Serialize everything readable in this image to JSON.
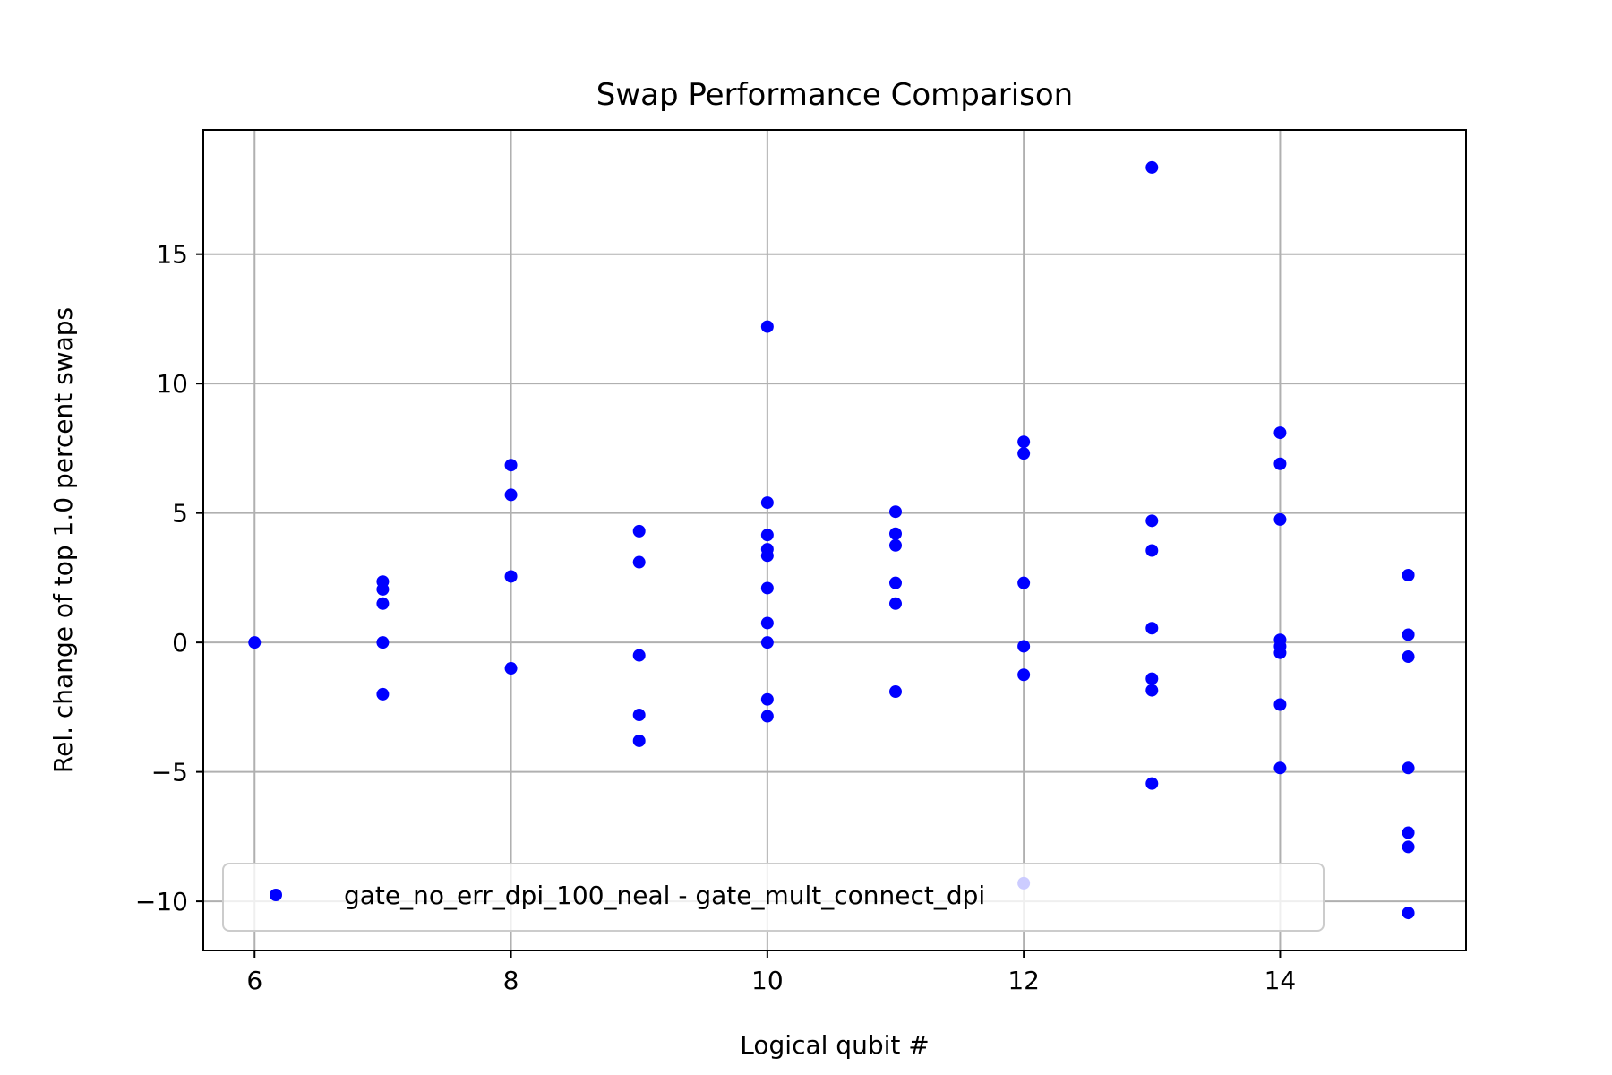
{
  "chart_data": {
    "type": "scatter",
    "title": "Swap Performance Comparison",
    "xlabel": "Logical qubit #",
    "ylabel": "Rel. change of top 1.0 percent swaps",
    "xlim": [
      5.6,
      15.45
    ],
    "ylim": [
      -11.9,
      19.8
    ],
    "xticks": [
      6,
      8,
      10,
      12,
      14
    ],
    "xtick_labels": [
      "6",
      "8",
      "10",
      "12",
      "14"
    ],
    "yticks": [
      -10,
      -5,
      0,
      5,
      10,
      15
    ],
    "ytick_labels": [
      "−10",
      "−5",
      "0",
      "5",
      "10",
      "15"
    ],
    "grid": true,
    "legend_location": "lower center",
    "series": [
      {
        "name": "gate_no_err_dpi_100_neal - gate_mult_connect_dpi",
        "color": "#0000ff",
        "marker": "circle",
        "points": [
          {
            "x": 6,
            "y": 0.0
          },
          {
            "x": 7,
            "y": 2.35
          },
          {
            "x": 7,
            "y": 2.05
          },
          {
            "x": 7,
            "y": 1.5
          },
          {
            "x": 7,
            "y": 0.0
          },
          {
            "x": 7,
            "y": -2.0
          },
          {
            "x": 8,
            "y": 6.85
          },
          {
            "x": 8,
            "y": 5.7
          },
          {
            "x": 8,
            "y": 2.55
          },
          {
            "x": 8,
            "y": -1.0
          },
          {
            "x": 9,
            "y": 4.3
          },
          {
            "x": 9,
            "y": 3.1
          },
          {
            "x": 9,
            "y": -0.5
          },
          {
            "x": 9,
            "y": -2.8
          },
          {
            "x": 9,
            "y": -3.8
          },
          {
            "x": 10,
            "y": 12.2
          },
          {
            "x": 10,
            "y": 5.4
          },
          {
            "x": 10,
            "y": 4.15
          },
          {
            "x": 10,
            "y": 3.6
          },
          {
            "x": 10,
            "y": 3.35
          },
          {
            "x": 10,
            "y": 2.1
          },
          {
            "x": 10,
            "y": 0.75
          },
          {
            "x": 10,
            "y": 0.0
          },
          {
            "x": 10,
            "y": -2.2
          },
          {
            "x": 10,
            "y": -2.85
          },
          {
            "x": 11,
            "y": 5.05
          },
          {
            "x": 11,
            "y": 4.2
          },
          {
            "x": 11,
            "y": 3.75
          },
          {
            "x": 11,
            "y": 2.3
          },
          {
            "x": 11,
            "y": 1.5
          },
          {
            "x": 11,
            "y": -1.9
          },
          {
            "x": 12,
            "y": 7.75
          },
          {
            "x": 12,
            "y": 7.3
          },
          {
            "x": 12,
            "y": 2.3
          },
          {
            "x": 12,
            "y": -0.15
          },
          {
            "x": 12,
            "y": -1.25
          },
          {
            "x": 12,
            "y": -9.3
          },
          {
            "x": 13,
            "y": 18.35
          },
          {
            "x": 13,
            "y": 4.7
          },
          {
            "x": 13,
            "y": 3.55
          },
          {
            "x": 13,
            "y": 0.55
          },
          {
            "x": 13,
            "y": -1.4
          },
          {
            "x": 13,
            "y": -1.85
          },
          {
            "x": 13,
            "y": -5.45
          },
          {
            "x": 14,
            "y": 8.1
          },
          {
            "x": 14,
            "y": 6.9
          },
          {
            "x": 14,
            "y": 4.75
          },
          {
            "x": 14,
            "y": 0.1
          },
          {
            "x": 14,
            "y": -0.15
          },
          {
            "x": 14,
            "y": -0.4
          },
          {
            "x": 14,
            "y": -2.4
          },
          {
            "x": 14,
            "y": -4.85
          },
          {
            "x": 15,
            "y": 2.6
          },
          {
            "x": 15,
            "y": 0.3
          },
          {
            "x": 15,
            "y": -0.55
          },
          {
            "x": 15,
            "y": -4.85
          },
          {
            "x": 15,
            "y": -7.35
          },
          {
            "x": 15,
            "y": -7.9
          },
          {
            "x": 15,
            "y": -10.45
          }
        ]
      }
    ],
    "colors": {
      "grid": "#b0b0b0",
      "axes": "#000000",
      "legend_border": "#cccccc",
      "legend_bg": "#ffffff"
    }
  }
}
